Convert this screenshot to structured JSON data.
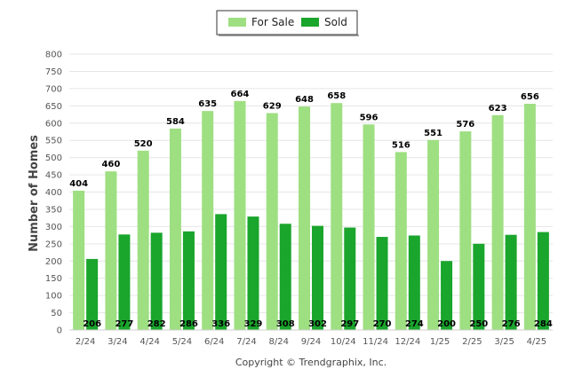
{
  "chart_data": {
    "type": "bar",
    "categories": [
      "2/24",
      "3/24",
      "4/24",
      "5/24",
      "6/24",
      "7/24",
      "8/24",
      "9/24",
      "10/24",
      "11/24",
      "12/24",
      "1/25",
      "2/25",
      "3/25",
      "4/25"
    ],
    "series": [
      {
        "name": "For Sale",
        "color": "#9edf82",
        "values": [
          404,
          460,
          520,
          584,
          635,
          664,
          629,
          648,
          658,
          596,
          516,
          551,
          576,
          623,
          656
        ]
      },
      {
        "name": "Sold",
        "color": "#1aa52c",
        "values": [
          206,
          277,
          282,
          286,
          336,
          329,
          308,
          302,
          297,
          270,
          274,
          200,
          250,
          276,
          284
        ]
      }
    ],
    "ylabel": "Number of Homes",
    "xlabel": "",
    "ylim": [
      0,
      800
    ],
    "yticks": [
      0,
      50,
      100,
      150,
      200,
      250,
      300,
      350,
      400,
      450,
      500,
      550,
      600,
      650,
      700,
      750,
      800
    ],
    "grid": true,
    "legend_position": "top-center"
  },
  "footer": {
    "copyright": "Copyright © Trendgraphix, Inc."
  }
}
